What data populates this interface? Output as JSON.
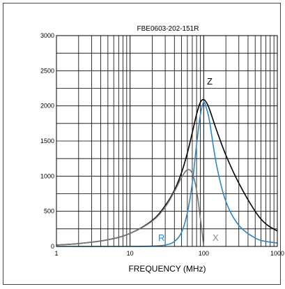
{
  "chart_data": {
    "type": "line",
    "title": "FBE0603-202-151R",
    "xlabel": "FREQUENCY (MHz)",
    "ylabel": "",
    "x_scale": "log",
    "xlim": [
      1,
      1000
    ],
    "ylim": [
      0,
      3000
    ],
    "x_ticks": [
      1,
      10,
      100,
      1000
    ],
    "x_tick_labels": [
      "1",
      "10",
      "100",
      "1000"
    ],
    "y_ticks": [
      0,
      500,
      1000,
      1500,
      2000,
      2500,
      3000
    ],
    "y_tick_labels": [
      "0",
      "500",
      "1000",
      "1500",
      "2000",
      "2500",
      "3000"
    ],
    "grid": true,
    "series": [
      {
        "name": "Z",
        "color": "#000000",
        "x": [
          1,
          2,
          5,
          10,
          20,
          30,
          40,
          50,
          60,
          70,
          80,
          90,
          100,
          110,
          120,
          150,
          200,
          300,
          500,
          700,
          1000
        ],
        "y": [
          20,
          40,
          95,
          185,
          370,
          580,
          800,
          1050,
          1330,
          1620,
          1880,
          2050,
          2090,
          2040,
          1950,
          1650,
          1300,
          900,
          500,
          320,
          220
        ]
      },
      {
        "name": "R",
        "color": "#2f86c4",
        "x": [
          1,
          10,
          20,
          30,
          40,
          50,
          60,
          70,
          80,
          90,
          100,
          110,
          120,
          150,
          200,
          300,
          500,
          700,
          1000
        ],
        "y": [
          0,
          0,
          5,
          20,
          70,
          200,
          480,
          900,
          1450,
          1870,
          2050,
          1950,
          1780,
          1150,
          640,
          300,
          120,
          70,
          50
        ]
      },
      {
        "name": "X",
        "color": "#777777",
        "x": [
          1,
          2,
          5,
          10,
          20,
          30,
          40,
          50,
          60,
          70,
          80,
          90,
          100
        ],
        "y": [
          20,
          40,
          95,
          185,
          360,
          560,
          780,
          980,
          1090,
          1040,
          800,
          400,
          0
        ]
      }
    ]
  }
}
